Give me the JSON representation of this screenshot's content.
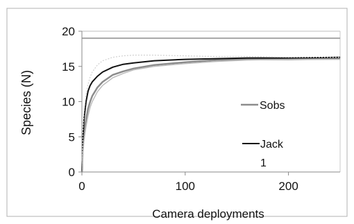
{
  "chart_data": {
    "type": "line",
    "ylabel": "Species (N)",
    "xlabel": "Camera deployments",
    "xlim": [
      0,
      250
    ],
    "ylim": [
      0,
      20
    ],
    "x_ticks": [
      0,
      100,
      200
    ],
    "y_ticks": [
      0,
      5,
      10,
      15,
      20
    ],
    "grid": false,
    "legend_position": "right",
    "reference_lines": [
      {
        "y": 19.0,
        "color": "#a6a6a6"
      }
    ],
    "series": [
      {
        "name": "Sobs",
        "color": "#8c8c8c",
        "x": [
          0,
          1,
          2,
          4,
          6,
          8,
          10,
          15,
          20,
          30,
          40,
          50,
          70,
          100,
          130,
          160,
          200,
          250
        ],
        "y": [
          0,
          3.5,
          5.5,
          7.5,
          9.0,
          10.0,
          10.8,
          12.0,
          12.8,
          13.8,
          14.3,
          14.7,
          15.2,
          15.6,
          15.9,
          16.0,
          16.0,
          16.1
        ]
      },
      {
        "name": "Jack 1",
        "color": "#111111",
        "x": [
          0,
          1,
          2,
          4,
          6,
          8,
          10,
          15,
          20,
          30,
          40,
          50,
          70,
          100,
          130,
          160,
          200,
          250
        ],
        "y": [
          0,
          5.0,
          7.5,
          10.0,
          11.5,
          12.3,
          12.8,
          13.6,
          14.2,
          14.9,
          15.3,
          15.5,
          15.8,
          16.0,
          16.1,
          16.2,
          16.2,
          16.3
        ]
      },
      {
        "name": "",
        "color": "#bdbdbd",
        "x": [
          0,
          1,
          2,
          4,
          6,
          8,
          10,
          15,
          20,
          30,
          40,
          50,
          70,
          100,
          130,
          160,
          200,
          250
        ],
        "y": [
          0,
          2.5,
          4.5,
          6.5,
          8.0,
          9.2,
          10.0,
          11.4,
          12.3,
          13.4,
          14.0,
          14.5,
          15.0,
          15.4,
          15.7,
          15.9,
          16.0,
          16.0
        ]
      },
      {
        "name": "",
        "color": "#d0d0d0",
        "x": [
          0,
          1,
          2,
          4,
          6,
          8,
          10,
          15,
          20,
          30,
          40,
          50,
          70,
          100,
          130,
          160,
          200,
          250
        ],
        "y": [
          0,
          6.0,
          8.5,
          11.0,
          12.5,
          13.5,
          14.2,
          15.2,
          15.8,
          16.3,
          16.5,
          16.6,
          16.6,
          16.5,
          16.4,
          16.4,
          16.3,
          16.3
        ]
      }
    ],
    "legend": [
      {
        "label": "Sobs",
        "color": "#8c8c8c"
      },
      {
        "label": "Jack",
        "sublabel": "1",
        "color": "#111111"
      }
    ]
  }
}
